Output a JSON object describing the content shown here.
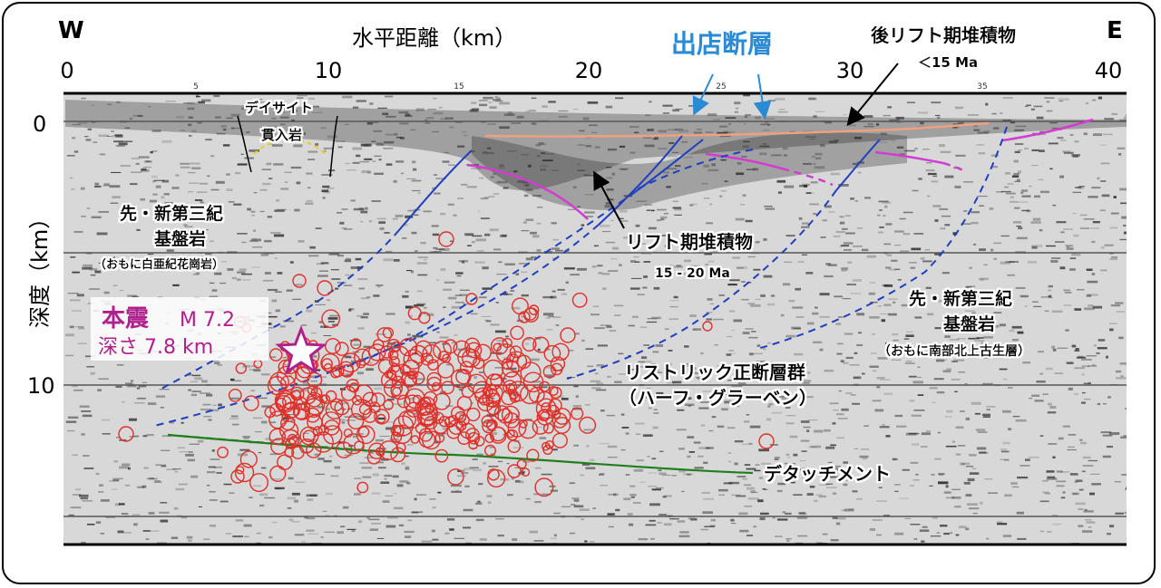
{
  "title_axis": "水平距離（km）",
  "dir_west": "W",
  "dir_east": "E",
  "x_ticks_major": [
    "0",
    "10",
    "20",
    "30",
    "40"
  ],
  "x_ticks_minor": [
    "5",
    "15",
    "25",
    "35"
  ],
  "y_axis_label": "深度（km）",
  "y_ticks": [
    "0",
    "10"
  ],
  "labels": {
    "fault_name": "出店断層",
    "post_rift_line1": "後リフト期堆積物",
    "post_rift_line2": "＜15 Ma",
    "dacite_line1": "デイサイト",
    "dacite_line2": "貫入岩",
    "basement_left_line1": "先・新第三紀",
    "basement_left_line2": "基盤岩",
    "basement_left_line3": "（おもに白亜紀花崗岩）",
    "rift_line1": "リフト期堆積物",
    "rift_line2": "15 - 20 Ma",
    "basement_right_line1": "先・新第三紀",
    "basement_right_line2": "基盤岩",
    "basement_right_line3": "（おもに南部北上古生層）",
    "mainshock_line1a": "本震",
    "mainshock_line1b": "M 7.2",
    "mainshock_line2": "深さ 7.8 km",
    "listric_line1": "リストリック正断層群",
    "listric_line2": "（ハーフ・グラーベン）",
    "detachment": "デタッチメント"
  },
  "colors": {
    "fault_blue": "#1f3fbf",
    "rift_magenta": "#d23cd2",
    "post_rift_orange": "#f0a080",
    "detachment_green": "#1f7f1f",
    "aftershock_red": "#e0302a",
    "mainshock_purple": "#b0208c",
    "fault_label_blue": "#2a8ad4"
  },
  "icons": {
    "mainshock": "star-icon",
    "aftershock": "circle-icon"
  }
}
